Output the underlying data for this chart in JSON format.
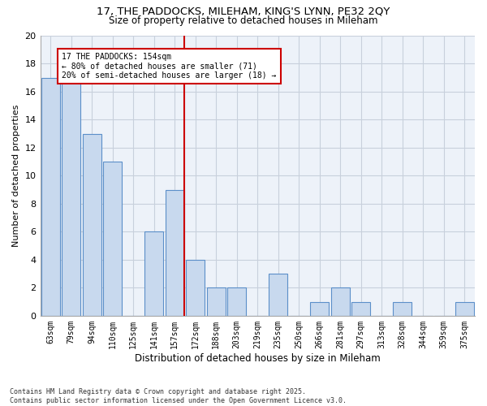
{
  "title": "17, THE PADDOCKS, MILEHAM, KING'S LYNN, PE32 2QY",
  "subtitle": "Size of property relative to detached houses in Mileham",
  "xlabel": "Distribution of detached houses by size in Mileham",
  "ylabel": "Number of detached properties",
  "categories": [
    "63sqm",
    "79sqm",
    "94sqm",
    "110sqm",
    "125sqm",
    "141sqm",
    "157sqm",
    "172sqm",
    "188sqm",
    "203sqm",
    "219sqm",
    "235sqm",
    "250sqm",
    "266sqm",
    "281sqm",
    "297sqm",
    "313sqm",
    "328sqm",
    "344sqm",
    "359sqm",
    "375sqm"
  ],
  "values": [
    17,
    17,
    13,
    11,
    0,
    6,
    9,
    4,
    2,
    2,
    0,
    3,
    0,
    1,
    2,
    1,
    0,
    1,
    0,
    0,
    1
  ],
  "bar_color": "#c8d9ee",
  "bar_edgecolor": "#5b8fc9",
  "vline_x_index": 6,
  "vline_color": "#cc0000",
  "annotation_text": "17 THE PADDOCKS: 154sqm\n← 80% of detached houses are smaller (71)\n20% of semi-detached houses are larger (18) →",
  "annotation_box_edgecolor": "#cc0000",
  "grid_color": "#c8d0dc",
  "background_color": "#edf2f9",
  "footer": "Contains HM Land Registry data © Crown copyright and database right 2025.\nContains public sector information licensed under the Open Government Licence v3.0.",
  "ylim": [
    0,
    20
  ],
  "yticks": [
    0,
    2,
    4,
    6,
    8,
    10,
    12,
    14,
    16,
    18,
    20
  ]
}
